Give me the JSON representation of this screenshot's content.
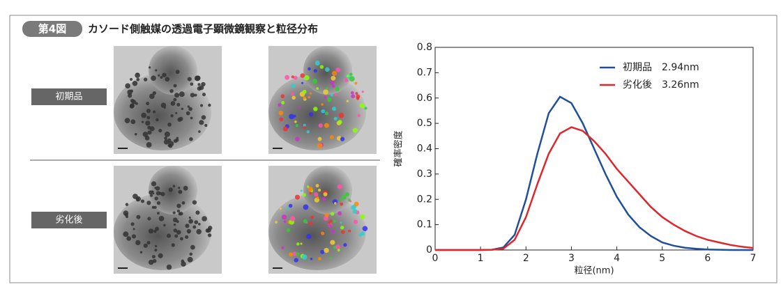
{
  "header": {
    "figure_no": "第4図",
    "title": "カソード側触媒の透過電子顕微鏡観察と粒径分布"
  },
  "rows": [
    {
      "label": "初期品"
    },
    {
      "label": "劣化後"
    }
  ],
  "chart_data": {
    "type": "line",
    "y_label": "確率密度",
    "x_label": "粒径(nm)",
    "x": [
      0,
      0.25,
      0.5,
      0.75,
      1,
      1.25,
      1.5,
      1.75,
      2,
      2.25,
      2.5,
      2.75,
      3,
      3.25,
      3.5,
      3.75,
      4,
      4.25,
      4.5,
      4.75,
      5,
      5.25,
      5.5,
      5.75,
      6,
      6.25,
      6.5,
      6.75,
      7
    ],
    "series": [
      {
        "name": "初期品　2.94nm",
        "color": "#1f4e9c",
        "values": [
          0,
          0,
          0,
          0,
          0,
          0.001,
          0.01,
          0.06,
          0.2,
          0.38,
          0.54,
          0.605,
          0.58,
          0.5,
          0.4,
          0.3,
          0.21,
          0.14,
          0.09,
          0.055,
          0.03,
          0.017,
          0.009,
          0.005,
          0.002,
          0.001,
          0,
          0,
          0
        ]
      },
      {
        "name": "劣化後　3.26nm",
        "color": "#e0262b",
        "values": [
          0,
          0,
          0,
          0,
          0,
          0.001,
          0.005,
          0.04,
          0.13,
          0.26,
          0.38,
          0.46,
          0.485,
          0.47,
          0.43,
          0.38,
          0.32,
          0.27,
          0.22,
          0.17,
          0.13,
          0.1,
          0.075,
          0.055,
          0.04,
          0.03,
          0.02,
          0.013,
          0.008
        ]
      }
    ],
    "xlim": [
      0,
      7
    ],
    "ylim": [
      0,
      0.8
    ],
    "xticks": [
      0,
      1,
      2,
      3,
      4,
      5,
      6,
      7
    ],
    "yticks": [
      0,
      0.1,
      0.2,
      0.3,
      0.4,
      0.5,
      0.6,
      0.7,
      0.8
    ]
  }
}
